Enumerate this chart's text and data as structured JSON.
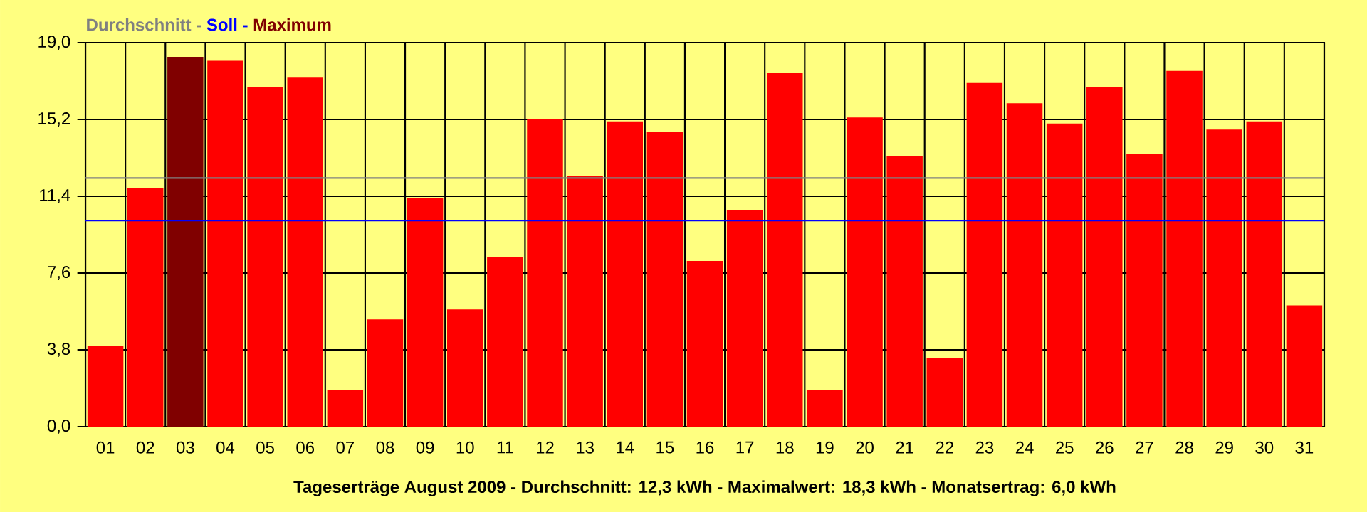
{
  "chart_data": {
    "type": "bar",
    "xlabel": "**Tageserträge August 2009 - Durchschnitt: 12,3 kWh - Maximalwert: 18,3 kWh - Monatsertrag: 6,0 kWh**",
    "categories": [
      "01",
      "02",
      "03",
      "04",
      "05",
      "06",
      "07",
      "08",
      "09",
      "10",
      "11",
      "12",
      "13",
      "14",
      "15",
      "16",
      "17",
      "18",
      "19",
      "20",
      "21",
      "22",
      "23",
      "24",
      "25",
      "26",
      "27",
      "28",
      "29",
      "30",
      "31"
    ],
    "values": [
      4.0,
      11.8,
      18.3,
      18.1,
      16.8,
      17.3,
      1.8,
      5.3,
      11.3,
      5.8,
      8.4,
      15.2,
      12.4,
      15.1,
      14.6,
      8.2,
      10.7,
      17.5,
      1.8,
      15.3,
      13.4,
      3.4,
      17.0,
      16.0,
      15.0,
      16.8,
      13.5,
      17.6,
      14.7,
      15.1,
      6.0
    ],
    "colors": [
      "#ff0000",
      "#ff0000",
      "#800000",
      "#ff0000",
      "#ff0000",
      "#ff0000",
      "#ff0000",
      "#ff0000",
      "#ff0000",
      "#ff0000",
      "#ff0000",
      "#ff0000",
      "#ff0000",
      "#ff0000",
      "#ff0000",
      "#ff0000",
      "#ff0000",
      "#ff0000",
      "#ff0000",
      "#ff0000",
      "#ff0000",
      "#ff0000",
      "#ff0000",
      "#ff0000",
      "#ff0000",
      "#ff0000",
      "#ff0000",
      "#ff0000",
      "#ff0000",
      "#ff0000",
      "#ff0000"
    ],
    "ylim": [
      0,
      19.0
    ],
    "yticks": [
      {
        "value": 0,
        "label": "0,0"
      },
      {
        "value": 3.8,
        "label": "3,8"
      },
      {
        "value": 7.6,
        "label": "7,6"
      },
      {
        "value": 11.4,
        "label": "11,4"
      },
      {
        "value": 15.2,
        "label": "15,2"
      },
      {
        "value": 19.0,
        "label": "19,0"
      }
    ],
    "grid": true,
    "ref_lines": [
      {
        "axis": "y",
        "value": 12.3,
        "label": "Durchschnitt",
        "color": "#808080"
      },
      {
        "axis": "y",
        "value": 10.2,
        "label": "Soll",
        "color": "#0000ff"
      }
    ],
    "annotations": [
      "-",
      "-",
      "Maximum"
    ]
  }
}
